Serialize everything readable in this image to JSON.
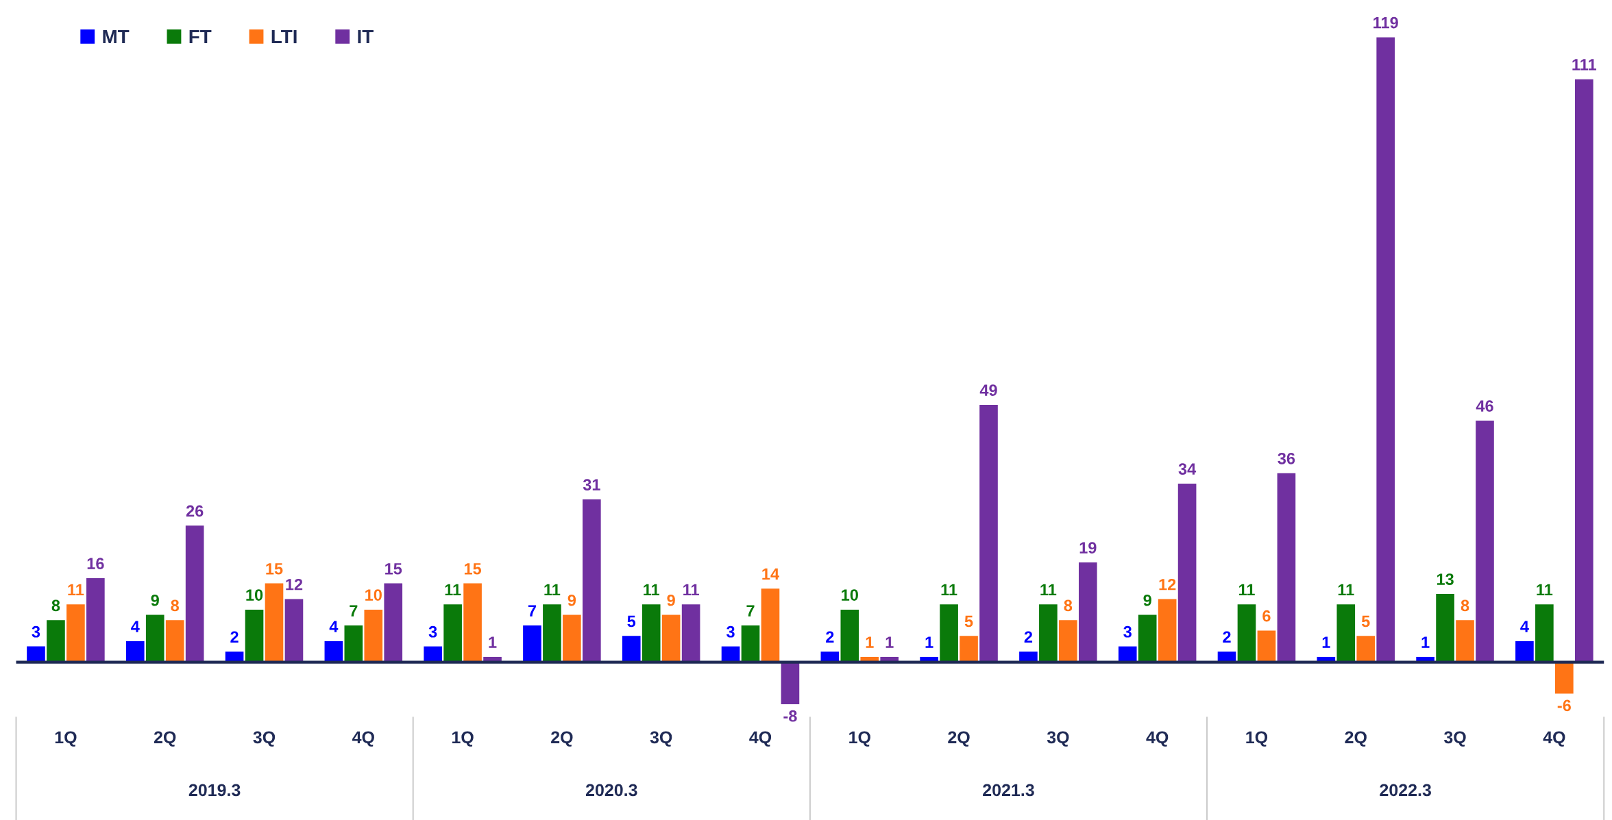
{
  "chart_data": {
    "type": "bar",
    "categories": [
      "1Q",
      "2Q",
      "3Q",
      "4Q",
      "1Q",
      "2Q",
      "3Q",
      "4Q",
      "1Q",
      "2Q",
      "3Q",
      "4Q",
      "1Q",
      "2Q",
      "3Q",
      "4Q"
    ],
    "series": [
      {
        "name": "MT",
        "color": "#0000ff",
        "values": [
          3,
          4,
          2,
          4,
          3,
          7,
          5,
          3,
          2,
          1,
          2,
          3,
          2,
          1,
          1,
          4
        ]
      },
      {
        "name": "FT",
        "color": "#0a7a0a",
        "values": [
          8,
          9,
          10,
          7,
          11,
          11,
          11,
          7,
          10,
          11,
          11,
          9,
          11,
          11,
          13,
          11
        ]
      },
      {
        "name": "LTI",
        "color": "#ff7415",
        "values": [
          11,
          8,
          15,
          10,
          15,
          9,
          9,
          14,
          1,
          5,
          8,
          12,
          6,
          5,
          8,
          -6
        ]
      },
      {
        "name": "IT",
        "color": "#7030a0",
        "values": [
          16,
          26,
          12,
          15,
          1,
          31,
          11,
          -8,
          1,
          49,
          19,
          34,
          36,
          119,
          46,
          111
        ]
      }
    ],
    "annotations": [
      "2019.3",
      "2020.3",
      "2021.3",
      "2022.3"
    ],
    "data_labels": true,
    "legend": "top left",
    "grid": false
  }
}
